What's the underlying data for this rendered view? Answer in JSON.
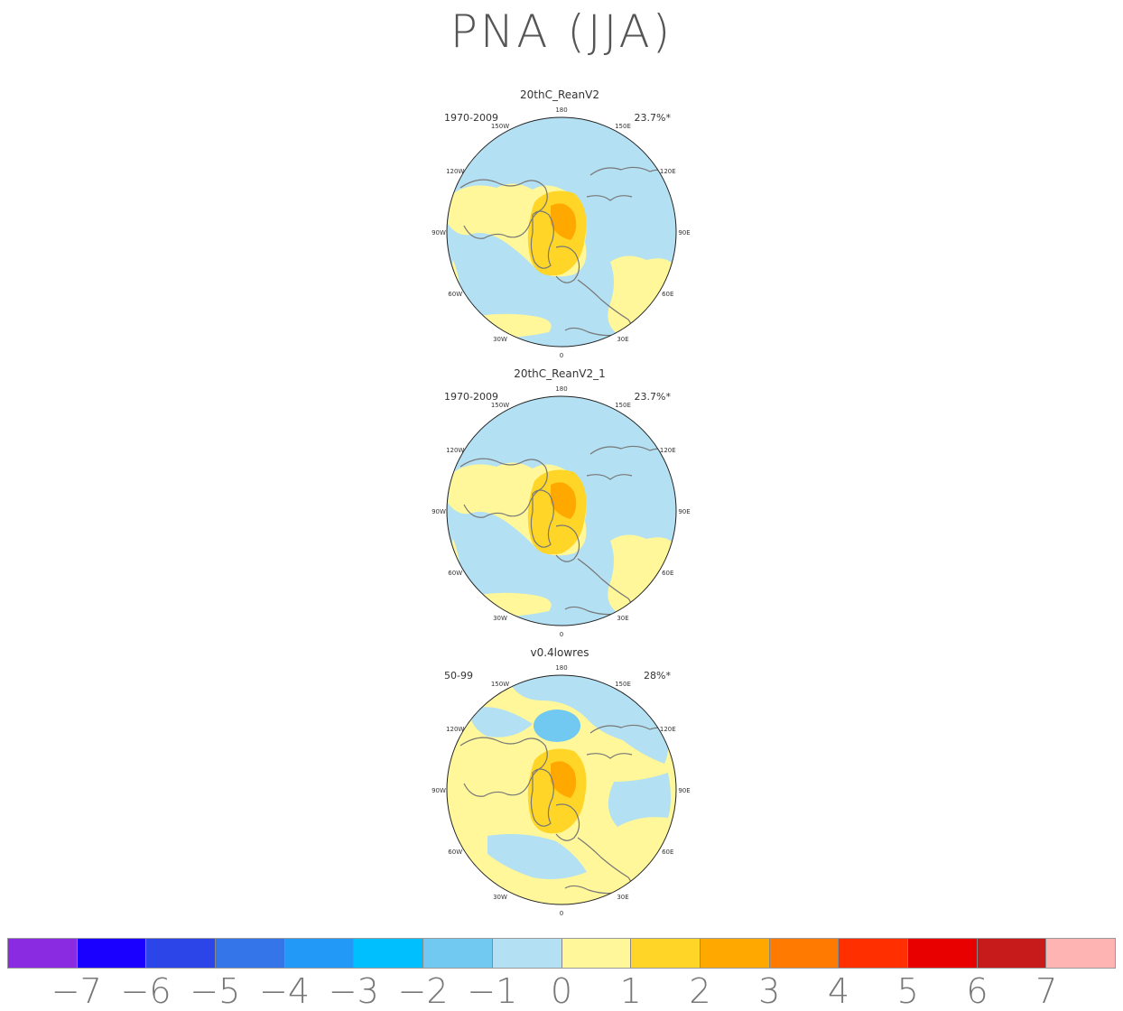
{
  "title": "PNA (JJA)",
  "chart_data": [
    {
      "type": "map",
      "title": "20thC_ReanV2",
      "period": "1970-2009",
      "variance_explained": "23.7%*",
      "lon_labels": [
        "180",
        "150E",
        "120E",
        "90E",
        "60E",
        "30E",
        "0",
        "30W",
        "60W",
        "90W",
        "120W",
        "150W"
      ]
    },
    {
      "type": "map",
      "title": "20thC_ReanV2_1",
      "period": "1970-2009",
      "variance_explained": "23.7%*",
      "lon_labels": [
        "180",
        "150E",
        "120E",
        "90E",
        "60E",
        "30E",
        "0",
        "30W",
        "60W",
        "90W",
        "120W",
        "150W"
      ]
    },
    {
      "type": "map",
      "title": "v0.4lowres",
      "period": "50-99",
      "variance_explained": "28%*",
      "lon_labels": [
        "180",
        "150E",
        "120E",
        "90E",
        "60E",
        "30E",
        "0",
        "30W",
        "60W",
        "90W",
        "120W",
        "150W"
      ]
    }
  ],
  "colorbar": {
    "ticks": [
      "−7",
      "−6",
      "−5",
      "−4",
      "−3",
      "−2",
      "−1",
      "0",
      "1",
      "2",
      "3",
      "4",
      "5",
      "6",
      "7"
    ],
    "colors": [
      "#8a2be2",
      "#1a00ff",
      "#2b45e8",
      "#3575ea",
      "#2399f7",
      "#00bfff",
      "#71c8f0",
      "#b3e0f2",
      "#fff799",
      "#ffd627",
      "#ffa900",
      "#ff7a00",
      "#ff2f00",
      "#e80000",
      "#c71a1a",
      "#ffb4b4"
    ]
  }
}
